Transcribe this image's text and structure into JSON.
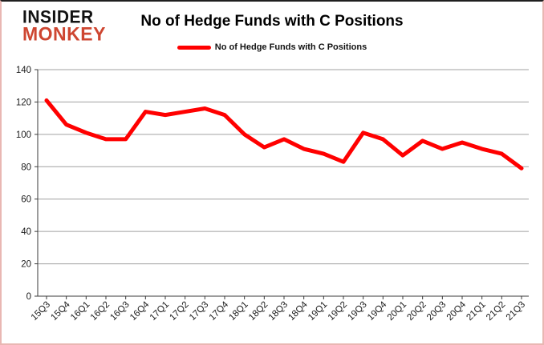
{
  "logo": {
    "line1": "INSIDER",
    "line2": "MONKEY"
  },
  "title": "No of Hedge Funds with C Positions",
  "legend": {
    "label": "No of Hedge Funds with C Positions"
  },
  "chart_data": {
    "type": "line",
    "title": "No of Hedge Funds with C Positions",
    "categories": [
      "15Q3",
      "15Q4",
      "16Q1",
      "16Q2",
      "16Q3",
      "16Q4",
      "17Q1",
      "17Q2",
      "17Q3",
      "17Q4",
      "18Q1",
      "18Q2",
      "18Q3",
      "18Q4",
      "19Q1",
      "19Q2",
      "19Q3",
      "19Q4",
      "20Q1",
      "20Q2",
      "20Q3",
      "20Q4",
      "21Q1",
      "21Q2",
      "21Q3"
    ],
    "series": [
      {
        "name": "No of Hedge Funds with C Positions",
        "color": "#ff0000",
        "values": [
          121,
          106,
          101,
          97,
          97,
          114,
          112,
          114,
          116,
          112,
          100,
          92,
          97,
          91,
          88,
          83,
          101,
          97,
          87,
          96,
          91,
          95,
          91,
          88,
          79
        ]
      }
    ],
    "xlabel": "",
    "ylabel": "",
    "ylim": [
      0,
      140
    ],
    "ytick_step": 20,
    "grid": true,
    "legend_position": "top"
  },
  "colors": {
    "series_line": "#ff0000",
    "gridline": "#a0a0a0",
    "axis": "#3a3a3a",
    "tick_text": "#1a1a1a",
    "logo_black": "#121212",
    "logo_red": "#ce4631",
    "border_pink": "#e9b7b3",
    "border_top": "#1f1f1f",
    "background": "#ffffff"
  }
}
